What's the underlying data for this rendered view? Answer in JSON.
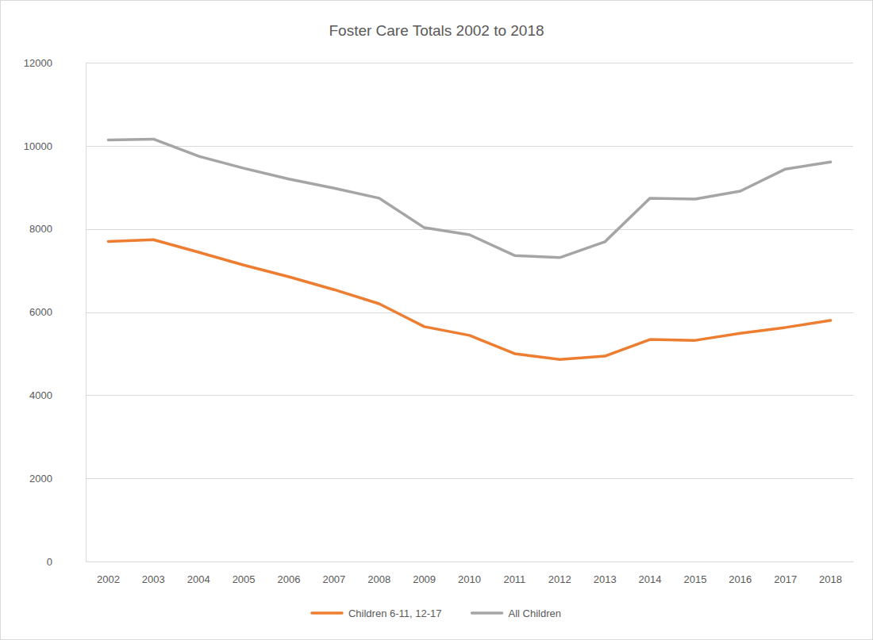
{
  "chart_data": {
    "type": "line",
    "title": "Foster Care Totals 2002 to 2018",
    "categories": [
      "2002",
      "2003",
      "2004",
      "2005",
      "2006",
      "2007",
      "2008",
      "2009",
      "2010",
      "2011",
      "2012",
      "2013",
      "2014",
      "2015",
      "2016",
      "2017",
      "2018"
    ],
    "series": [
      {
        "name": "Children 6-11, 12-17",
        "color": "#ed7d31",
        "values": [
          7700,
          7740,
          7440,
          7130,
          6850,
          6540,
          6200,
          5650,
          5440,
          5000,
          4860,
          4940,
          5340,
          5320,
          5490,
          5630,
          5800
        ]
      },
      {
        "name": "All Children",
        "color": "#a5a5a5",
        "values": [
          10140,
          10160,
          9750,
          9460,
          9200,
          8980,
          8740,
          8030,
          7860,
          7360,
          7310,
          7690,
          8740,
          8720,
          8910,
          9440,
          9610
        ]
      }
    ],
    "ylim": [
      0,
      12000
    ],
    "yticks": [
      0,
      2000,
      4000,
      6000,
      8000,
      10000,
      12000
    ],
    "grid": true,
    "legend": "bottom"
  }
}
